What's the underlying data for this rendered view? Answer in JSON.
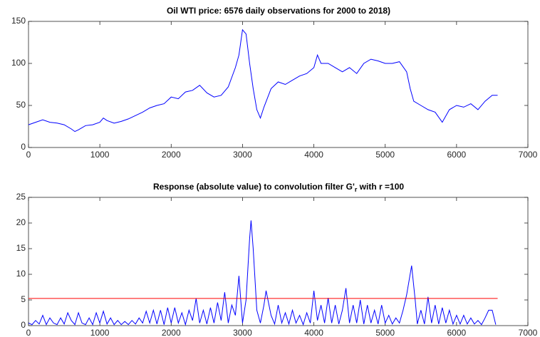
{
  "chart_data": [
    {
      "type": "line",
      "title": "Oil WTI price: 6576 daily observations for 2000 to 2018)",
      "color": "#0000ff",
      "xlim": [
        0,
        7000
      ],
      "xticks": [
        0,
        1000,
        2000,
        3000,
        4000,
        5000,
        6000,
        7000
      ],
      "ylim": [
        0,
        150
      ],
      "yticks": [
        0,
        50,
        100,
        150
      ],
      "x": [
        0,
        100,
        200,
        300,
        400,
        500,
        600,
        650,
        700,
        800,
        900,
        1000,
        1050,
        1100,
        1200,
        1300,
        1400,
        1500,
        1600,
        1700,
        1800,
        1900,
        2000,
        2100,
        2200,
        2300,
        2400,
        2500,
        2600,
        2700,
        2800,
        2900,
        2950,
        3000,
        3050,
        3100,
        3150,
        3200,
        3250,
        3300,
        3400,
        3500,
        3600,
        3700,
        3800,
        3900,
        4000,
        4050,
        4100,
        4200,
        4300,
        4400,
        4500,
        4600,
        4700,
        4800,
        4900,
        5000,
        5100,
        5200,
        5300,
        5350,
        5400,
        5500,
        5600,
        5700,
        5800,
        5900,
        6000,
        6100,
        6200,
        6300,
        6400,
        6500,
        6576
      ],
      "values": [
        27,
        30,
        33,
        30,
        29,
        27,
        22,
        19,
        21,
        26,
        27,
        30,
        35,
        32,
        29,
        31,
        34,
        38,
        42,
        47,
        50,
        52,
        60,
        58,
        66,
        68,
        74,
        65,
        60,
        62,
        72,
        95,
        110,
        140,
        135,
        100,
        70,
        45,
        35,
        48,
        70,
        78,
        75,
        80,
        85,
        88,
        95,
        110,
        100,
        100,
        95,
        90,
        95,
        88,
        100,
        105,
        103,
        100,
        100,
        102,
        90,
        70,
        55,
        50,
        45,
        42,
        30,
        45,
        50,
        48,
        52,
        45,
        55,
        62,
        62
      ]
    },
    {
      "type": "line",
      "title": "Response (absolute value) to convolution filter G'",
      "title_subscript": "r",
      "title_suffix": " with r =100",
      "color": "#0000ff",
      "xlim": [
        0,
        7000
      ],
      "xticks": [
        0,
        1000,
        2000,
        3000,
        4000,
        5000,
        6000,
        7000
      ],
      "ylim": [
        0,
        25
      ],
      "yticks": [
        0,
        5,
        10,
        15,
        20,
        25
      ],
      "reference_line": {
        "value": 5.3,
        "xlim": [
          0,
          6576
        ],
        "color": "#ff0000"
      },
      "x": [
        0,
        50,
        100,
        150,
        200,
        250,
        300,
        350,
        400,
        450,
        500,
        550,
        600,
        650,
        700,
        750,
        800,
        850,
        900,
        950,
        1000,
        1050,
        1100,
        1150,
        1200,
        1250,
        1300,
        1350,
        1400,
        1450,
        1500,
        1550,
        1600,
        1650,
        1700,
        1750,
        1800,
        1850,
        1900,
        1950,
        2000,
        2050,
        2100,
        2150,
        2200,
        2250,
        2300,
        2350,
        2400,
        2450,
        2500,
        2550,
        2600,
        2650,
        2700,
        2750,
        2800,
        2850,
        2900,
        2950,
        3000,
        3050,
        3100,
        3120,
        3150,
        3200,
        3250,
        3300,
        3330,
        3400,
        3450,
        3500,
        3550,
        3600,
        3650,
        3700,
        3750,
        3800,
        3850,
        3900,
        3950,
        4000,
        4050,
        4100,
        4150,
        4200,
        4250,
        4300,
        4350,
        4400,
        4450,
        4500,
        4550,
        4600,
        4650,
        4700,
        4750,
        4800,
        4850,
        4900,
        4950,
        5000,
        5050,
        5100,
        5150,
        5200,
        5250,
        5300,
        5370,
        5420,
        5450,
        5500,
        5550,
        5600,
        5650,
        5700,
        5750,
        5800,
        5850,
        5900,
        5950,
        6000,
        6050,
        6100,
        6150,
        6200,
        6250,
        6300,
        6350,
        6400,
        6450,
        6500,
        6550
      ],
      "values": [
        0.5,
        0.2,
        1,
        0.3,
        2,
        0.2,
        1.5,
        0.5,
        0.2,
        1.5,
        0.3,
        2.5,
        1,
        0.2,
        2.5,
        0.5,
        0.2,
        1.5,
        0.2,
        2.5,
        0.5,
        2.8,
        0.3,
        1.5,
        0.2,
        1,
        0.2,
        0.8,
        0.2,
        1,
        0.3,
        1.5,
        0.5,
        2.8,
        0.5,
        3,
        0.3,
        3,
        0.2,
        3.5,
        0.5,
        3.5,
        0.5,
        2.5,
        0.2,
        3,
        1,
        5.3,
        0.5,
        3,
        0.3,
        3.5,
        0.5,
        4.5,
        1,
        6.5,
        0.5,
        4,
        2,
        9.7,
        0.5,
        5,
        17,
        20.5,
        15,
        3,
        0.5,
        4,
        6.8,
        2,
        0.3,
        4,
        0.5,
        2.5,
        0.3,
        3,
        0.5,
        2,
        0.2,
        2.5,
        0.5,
        6.8,
        1,
        4,
        0.5,
        5.4,
        0.5,
        4,
        0.3,
        3,
        7.3,
        0.5,
        4,
        0.5,
        5,
        0.3,
        4,
        0.5,
        3,
        0.3,
        4,
        0.5,
        2,
        0.3,
        1.5,
        0.5,
        3,
        6,
        11.7,
        5,
        0.3,
        3,
        0.3,
        5.6,
        0.5,
        4,
        0.3,
        3.5,
        0.5,
        3,
        0.3,
        2,
        0.3,
        2,
        0.3,
        1.5,
        0.3,
        1,
        0.2,
        1.5,
        3,
        3,
        0.2
      ]
    }
  ]
}
